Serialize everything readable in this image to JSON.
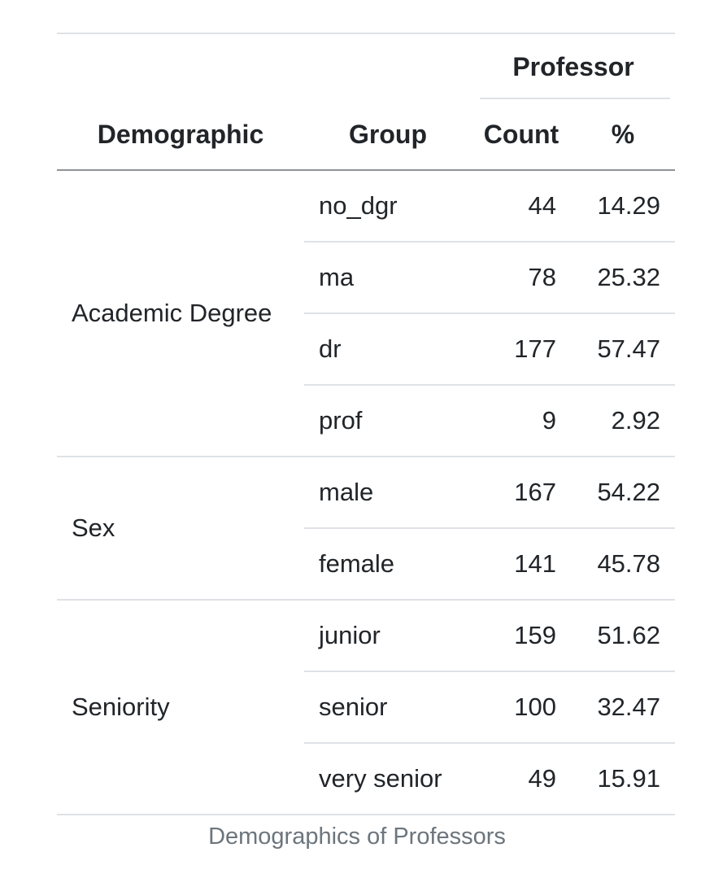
{
  "table": {
    "spanner": "Professor",
    "headers": {
      "demographic": "Demographic",
      "group": "Group",
      "count": "Count",
      "pct": "%"
    },
    "groups": [
      {
        "name": "Academic Degree",
        "rows": [
          {
            "group": "no_dgr",
            "count": "44",
            "pct": "14.29"
          },
          {
            "group": "ma",
            "count": "78",
            "pct": "25.32"
          },
          {
            "group": "dr",
            "count": "177",
            "pct": "57.47"
          },
          {
            "group": "prof",
            "count": "9",
            "pct": "2.92"
          }
        ]
      },
      {
        "name": "Sex",
        "rows": [
          {
            "group": "male",
            "count": "167",
            "pct": "54.22"
          },
          {
            "group": "female",
            "count": "141",
            "pct": "45.78"
          }
        ]
      },
      {
        "name": "Seniority",
        "rows": [
          {
            "group": "junior",
            "count": "159",
            "pct": "51.62"
          },
          {
            "group": "senior",
            "count": "100",
            "pct": "32.47"
          },
          {
            "group": "very senior",
            "count": "49",
            "pct": "15.91"
          }
        ]
      }
    ],
    "caption": "Demographics of Professors"
  }
}
